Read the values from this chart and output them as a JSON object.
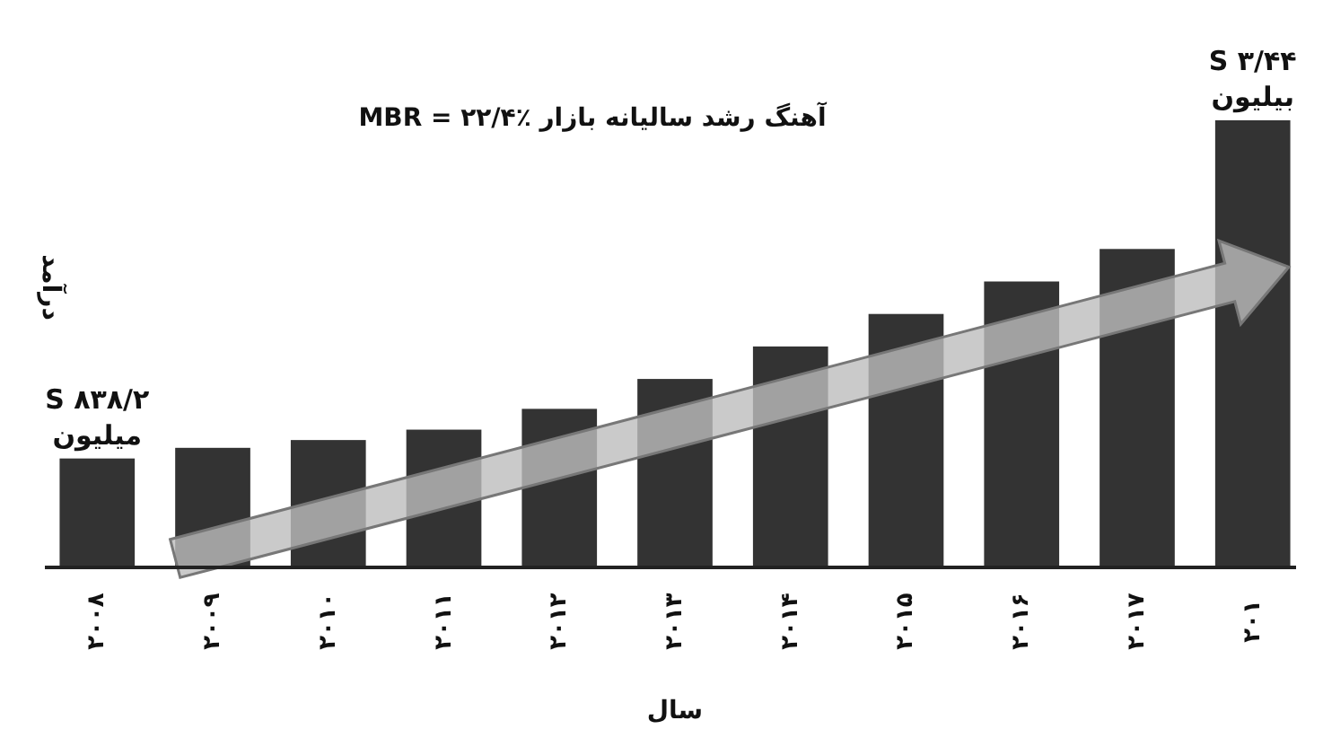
{
  "chart_data": {
    "type": "bar",
    "title": "آهنگ رشد سالیانه بازار MBR = ۲۲/۴٪",
    "xlabel": "سال",
    "ylabel": "درآمد",
    "categories": [
      "۲۰۰۸",
      "۲۰۰۹",
      "۲۰۱۰",
      "۲۰۱۱",
      "۲۰۱۲",
      "۲۰۱۳",
      "۲۰۱۴",
      "۲۰۱۵",
      "۲۰۱۶",
      "۲۰۱۷",
      "۲۰۱"
    ],
    "values": [
      838.2,
      920,
      980,
      1060,
      1220,
      1450,
      1700,
      1950,
      2200,
      2450,
      3440
    ],
    "color": "#333333",
    "value_labels": [
      "S ۸۳۸/۲\nمیلیون",
      null,
      null,
      null,
      null,
      null,
      null,
      null,
      null,
      null,
      "S ۳/۴۴\nبیلیون"
    ]
  }
}
